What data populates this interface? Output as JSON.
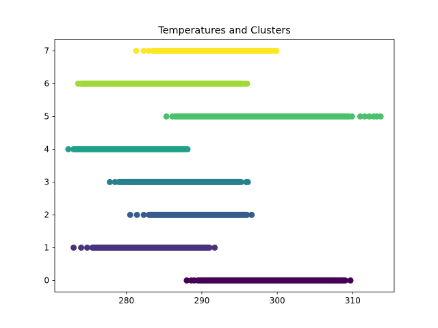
{
  "chart_data": {
    "type": "scatter",
    "title": "Temperatures and Clusters",
    "xlabel": "",
    "ylabel": "",
    "xlim": [
      270.5,
      315.5
    ],
    "ylim": [
      -0.35,
      7.35
    ],
    "x_ticks": [
      280,
      290,
      300,
      310
    ],
    "y_ticks": [
      0,
      1,
      2,
      3,
      4,
      5,
      6,
      7
    ],
    "grid": false,
    "legend": "none",
    "series": [
      {
        "cluster": 0,
        "color": "#440154",
        "dense_range": [
          289.5,
          309.0
        ],
        "outliers": [
          288.0,
          288.6,
          289.0,
          309.7
        ]
      },
      {
        "cluster": 1,
        "color": "#46327e",
        "dense_range": [
          275.5,
          291.0
        ],
        "outliers": [
          273.0,
          274.0,
          274.8,
          291.7
        ]
      },
      {
        "cluster": 2,
        "color": "#365c8d",
        "dense_range": [
          283.0,
          296.0
        ],
        "outliers": [
          280.5,
          281.4,
          282.3,
          296.6
        ]
      },
      {
        "cluster": 3,
        "color": "#277f8e",
        "dense_range": [
          279.0,
          295.2
        ],
        "outliers": [
          277.8,
          278.5,
          295.9,
          296.1
        ]
      },
      {
        "cluster": 4,
        "color": "#1fa187",
        "dense_range": [
          273.0,
          287.8
        ],
        "outliers": [
          272.3,
          288.1
        ]
      },
      {
        "cluster": 5,
        "color": "#4ac16d",
        "dense_range": [
          286.5,
          309.5
        ],
        "outliers": [
          285.3,
          286.1,
          309.9,
          311.0,
          311.6,
          312.2,
          312.8,
          313.2,
          313.7
        ]
      },
      {
        "cluster": 6,
        "color": "#a0da39",
        "dense_range": [
          274.0,
          295.3
        ],
        "outliers": [
          273.6,
          295.7,
          296.0
        ]
      },
      {
        "cluster": 7,
        "color": "#fde725",
        "dense_range": [
          283.5,
          299.2
        ],
        "outliers": [
          281.3,
          282.3,
          283.0,
          299.6,
          299.9
        ]
      }
    ]
  }
}
